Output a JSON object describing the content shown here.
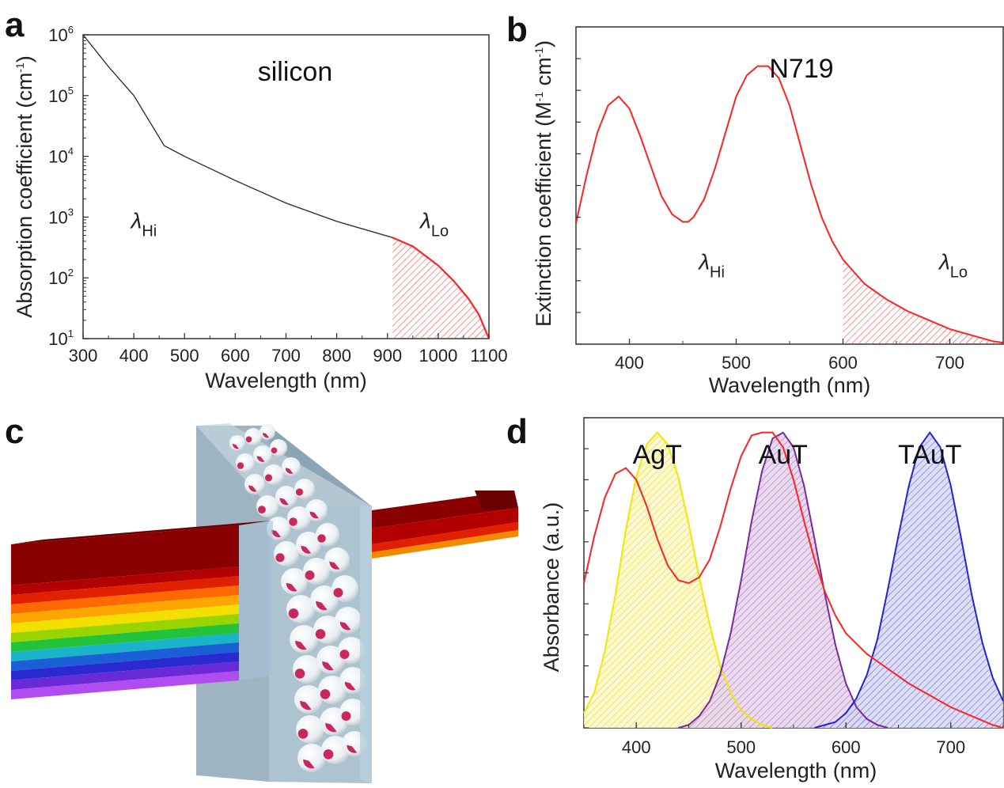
{
  "panels": {
    "a": "a",
    "b": "b",
    "c": "c",
    "d": "d"
  },
  "colors": {
    "red": "#ff2222",
    "yellow": "#f2e600",
    "purple": "#7a2a9a",
    "blue": "#2222dd",
    "black": "#333333"
  },
  "illustration": {
    "description_icon": "light-through-particle-film-icon",
    "stripe_colors": [
      "#8a0000",
      "#b30000",
      "#e02000",
      "#ff6a00",
      "#ffa500",
      "#f4e000",
      "#9ad400",
      "#22c23a",
      "#1ab4c8",
      "#1a5fd6",
      "#2a2ad0",
      "#6a2ad8",
      "#b04cf0"
    ]
  },
  "chart_data": [
    {
      "id": "a",
      "type": "line",
      "title": "silicon",
      "xlabel": "Wavelength (nm)",
      "ylabel": "Absorption coefficient (cm-1)",
      "ylabel_parts": {
        "main": "Absorption coefficient (cm",
        "sup": "-1",
        "end": ")"
      },
      "xlim": [
        300,
        1100
      ],
      "ylim": [
        10,
        1000000
      ],
      "yscale": "log",
      "xticks": [
        300,
        400,
        500,
        600,
        700,
        800,
        900,
        1000,
        1100
      ],
      "yticks": [
        {
          "value": 10,
          "base": "10",
          "exp": "1"
        },
        {
          "value": 100,
          "base": "10",
          "exp": "2"
        },
        {
          "value": 1000,
          "base": "10",
          "exp": "3"
        },
        {
          "value": 10000,
          "base": "10",
          "exp": "4"
        },
        {
          "value": 100000,
          "base": "10",
          "exp": "5"
        },
        {
          "value": 1000000,
          "base": "10",
          "exp": "6"
        }
      ],
      "series": [
        {
          "color": "#333333",
          "x": [
            300,
            350,
            400,
            460,
            500,
            600,
            700,
            800,
            910
          ],
          "y": [
            1000000,
            300000,
            100000,
            15000,
            10000,
            4000,
            1700,
            850,
            460
          ]
        },
        {
          "color": "#ff2222",
          "hatched": true,
          "x": [
            910,
            950,
            1000,
            1030,
            1060,
            1080,
            1100
          ],
          "y": [
            460,
            330,
            160,
            90,
            45,
            25,
            10
          ]
        }
      ],
      "annotations": [
        {
          "symbol": "λ",
          "sub": "Hi",
          "x": 410,
          "y": 600
        },
        {
          "symbol": "λ",
          "sub": "Lo",
          "x": 980,
          "y": 600
        }
      ]
    },
    {
      "id": "b",
      "type": "line",
      "title": "N719",
      "xlabel": "Wavelength (nm)",
      "ylabel": "Extinction coefficient (M-1 cm-1)",
      "ylabel_parts": {
        "main": "Extinction coefficient (M",
        "sup1": "-1",
        "mid": " cm",
        "sup2": "-1",
        "end": ")"
      },
      "xlim": [
        350,
        750
      ],
      "ylim": [
        0,
        10.5
      ],
      "xticks": [
        400,
        500,
        600,
        700
      ],
      "y_minor_ticks": 10,
      "series": [
        {
          "color": "#ff2222",
          "hatch_from": 600,
          "x": [
            350,
            360,
            370,
            380,
            390,
            400,
            410,
            420,
            430,
            440,
            450,
            455,
            460,
            470,
            480,
            490,
            500,
            510,
            520,
            530,
            540,
            550,
            560,
            570,
            580,
            590,
            600,
            620,
            640,
            660,
            680,
            700,
            720,
            740,
            750
          ],
          "y": [
            4.0,
            5.6,
            7.0,
            7.9,
            8.2,
            7.8,
            6.9,
            5.9,
            4.9,
            4.3,
            4.05,
            4.05,
            4.2,
            4.8,
            5.8,
            7.0,
            8.2,
            8.9,
            9.2,
            9.2,
            8.8,
            7.9,
            6.6,
            5.3,
            4.2,
            3.4,
            2.8,
            2.0,
            1.5,
            1.1,
            0.8,
            0.5,
            0.3,
            0.1,
            0.05
          ]
        }
      ],
      "annotations": [
        {
          "symbol": "λ",
          "sub": "Hi",
          "x": 465,
          "y": 2.6
        },
        {
          "symbol": "λ",
          "sub": "Lo",
          "x": 690,
          "y": 2.6
        }
      ]
    },
    {
      "id": "d",
      "type": "area",
      "xlabel": "Wavelength (nm)",
      "ylabel": "Absorbance (a.u.)",
      "xlim": [
        350,
        750
      ],
      "ylim": [
        0,
        1.05
      ],
      "xticks": [
        400,
        500,
        600,
        700
      ],
      "y_minor_ticks": 10,
      "series": [
        {
          "name": "AgT",
          "color": "#f2e600",
          "hatched": true,
          "x": [
            350,
            360,
            370,
            380,
            390,
            400,
            410,
            420,
            430,
            440,
            450,
            460,
            470,
            480,
            490,
            500,
            510,
            520,
            530
          ],
          "y": [
            0.05,
            0.12,
            0.26,
            0.45,
            0.67,
            0.85,
            0.96,
            1.0,
            0.96,
            0.85,
            0.69,
            0.51,
            0.35,
            0.21,
            0.12,
            0.06,
            0.03,
            0.01,
            0.0
          ]
        },
        {
          "name": "AuT",
          "color": "#7a2a9a",
          "hatched": true,
          "x": [
            440,
            450,
            460,
            470,
            480,
            490,
            500,
            510,
            520,
            530,
            540,
            550,
            560,
            570,
            580,
            590,
            600,
            610,
            620,
            630,
            640
          ],
          "y": [
            0.0,
            0.01,
            0.04,
            0.09,
            0.18,
            0.32,
            0.5,
            0.7,
            0.87,
            0.98,
            1.0,
            0.95,
            0.82,
            0.64,
            0.45,
            0.28,
            0.15,
            0.07,
            0.03,
            0.01,
            0.0
          ]
        },
        {
          "name": "TAuT",
          "color": "#2222dd",
          "hatched": true,
          "x": [
            570,
            580,
            590,
            600,
            610,
            620,
            630,
            640,
            650,
            660,
            670,
            680,
            690,
            700,
            710,
            720,
            730,
            740,
            750
          ],
          "y": [
            0.0,
            0.01,
            0.02,
            0.05,
            0.1,
            0.18,
            0.3,
            0.47,
            0.65,
            0.82,
            0.95,
            1.0,
            0.95,
            0.82,
            0.64,
            0.45,
            0.29,
            0.17,
            0.09
          ]
        },
        {
          "color": "#ff2222",
          "x": [
            350,
            360,
            370,
            380,
            390,
            400,
            410,
            420,
            430,
            440,
            450,
            460,
            470,
            480,
            490,
            500,
            510,
            520,
            530,
            540,
            550,
            560,
            570,
            580,
            590,
            600,
            620,
            640,
            660,
            680,
            700,
            720,
            740,
            750
          ],
          "y": [
            0.49,
            0.65,
            0.78,
            0.86,
            0.88,
            0.84,
            0.75,
            0.64,
            0.55,
            0.5,
            0.49,
            0.51,
            0.57,
            0.68,
            0.81,
            0.92,
            0.99,
            1.0,
            1.0,
            0.95,
            0.84,
            0.7,
            0.57,
            0.46,
            0.38,
            0.32,
            0.25,
            0.2,
            0.15,
            0.11,
            0.07,
            0.04,
            0.01,
            0.0
          ]
        }
      ],
      "labels": [
        {
          "text": "AgT",
          "x": 420
        },
        {
          "text": "AuT",
          "x": 540
        },
        {
          "text": "TAuT",
          "x": 680
        }
      ]
    }
  ]
}
